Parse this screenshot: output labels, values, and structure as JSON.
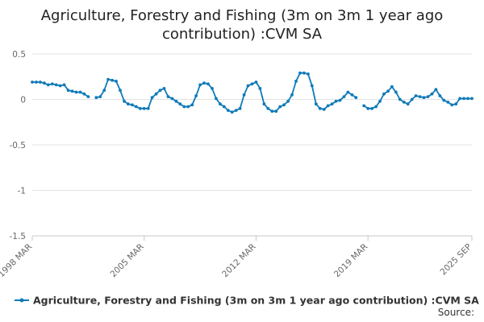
{
  "chart_data": {
    "type": "line",
    "title_lines": [
      "Agriculture, Forestry and Fishing (3m on 3m 1 year ago",
      "contribution) :CVM SA"
    ],
    "xlabel": "",
    "ylabel": "",
    "x_tick_labels": [
      "1998 MAR",
      "2005 MAR",
      "2012 MAR",
      "2019 MAR",
      "2025 SEP"
    ],
    "y_tick_labels": [
      "0.5",
      "0",
      "-0.5",
      "-1",
      "-1.5"
    ],
    "y_ticks": [
      0.5,
      0,
      -0.5,
      -1,
      -1.5
    ],
    "ylim": [
      -1.5,
      0.5
    ],
    "x_range": [
      "1998 MAR",
      "2025 SEP"
    ],
    "grid": true,
    "legend_position": "bottom",
    "series": [
      {
        "name": "Agriculture, Forestry and Fishing (3m on 3m 1 year ago contribution) :CVM SA",
        "color": "#0f7ab8",
        "points": [
          [
            "1998 MAR",
            0.19
          ],
          [
            "1998 JUN",
            0.19
          ],
          [
            "1998 SEP",
            0.19
          ],
          [
            "1998 DEC",
            0.18
          ],
          [
            "1999 MAR",
            0.16
          ],
          [
            "1999 JUN",
            0.17
          ],
          [
            "1999 SEP",
            0.16
          ],
          [
            "1999 DEC",
            0.15
          ],
          [
            "2000 MAR",
            0.16
          ],
          [
            "2000 JUN",
            0.1
          ],
          [
            "2000 SEP",
            0.09
          ],
          [
            "2000 DEC",
            0.08
          ],
          [
            "2001 MAR",
            0.08
          ],
          [
            "2001 JUN",
            0.06
          ],
          [
            "2001 SEP",
            0.03
          ],
          [
            "2002 MAR",
            0.02
          ],
          [
            "2002 JUN",
            0.03
          ],
          [
            "2002 SEP",
            0.1
          ],
          [
            "2002 DEC",
            0.22
          ],
          [
            "2003 MAR",
            0.21
          ],
          [
            "2003 JUN",
            0.2
          ],
          [
            "2003 SEP",
            0.1
          ],
          [
            "2003 DEC",
            -0.02
          ],
          [
            "2004 MAR",
            -0.05
          ],
          [
            "2004 JUN",
            -0.06
          ],
          [
            "2004 SEP",
            -0.08
          ],
          [
            "2004 DEC",
            -0.1
          ],
          [
            "2005 MAR",
            -0.1
          ],
          [
            "2005 JUN",
            -0.1
          ],
          [
            "2005 SEP",
            0.02
          ],
          [
            "2005 DEC",
            0.06
          ],
          [
            "2006 MAR",
            0.1
          ],
          [
            "2006 JUN",
            0.12
          ],
          [
            "2006 SEP",
            0.03
          ],
          [
            "2006 DEC",
            0.01
          ],
          [
            "2007 MAR",
            -0.02
          ],
          [
            "2007 JUN",
            -0.05
          ],
          [
            "2007 SEP",
            -0.08
          ],
          [
            "2007 DEC",
            -0.08
          ],
          [
            "2008 MAR",
            -0.06
          ],
          [
            "2008 JUN",
            0.04
          ],
          [
            "2008 SEP",
            0.16
          ],
          [
            "2008 DEC",
            0.18
          ],
          [
            "2009 MAR",
            0.17
          ],
          [
            "2009 JUN",
            0.12
          ],
          [
            "2009 SEP",
            0.01
          ],
          [
            "2009 DEC",
            -0.05
          ],
          [
            "2010 MAR",
            -0.08
          ],
          [
            "2010 JUN",
            -0.12
          ],
          [
            "2010 SEP",
            -0.14
          ],
          [
            "2010 DEC",
            -0.12
          ],
          [
            "2011 MAR",
            -0.1
          ],
          [
            "2011 JUN",
            0.05
          ],
          [
            "2011 SEP",
            0.15
          ],
          [
            "2011 DEC",
            0.17
          ],
          [
            "2012 MAR",
            0.19
          ],
          [
            "2012 JUN",
            0.12
          ],
          [
            "2012 SEP",
            -0.05
          ],
          [
            "2012 DEC",
            -0.1
          ],
          [
            "2013 MAR",
            -0.13
          ],
          [
            "2013 JUN",
            -0.13
          ],
          [
            "2013 SEP",
            -0.08
          ],
          [
            "2013 DEC",
            -0.06
          ],
          [
            "2014 MAR",
            -0.02
          ],
          [
            "2014 JUN",
            0.05
          ],
          [
            "2014 SEP",
            0.2
          ],
          [
            "2014 DEC",
            0.29
          ],
          [
            "2015 MAR",
            0.29
          ],
          [
            "2015 JUN",
            0.28
          ],
          [
            "2015 SEP",
            0.15
          ],
          [
            "2015 DEC",
            -0.05
          ],
          [
            "2016 MAR",
            -0.1
          ],
          [
            "2016 JUN",
            -0.11
          ],
          [
            "2016 SEP",
            -0.07
          ],
          [
            "2016 DEC",
            -0.05
          ],
          [
            "2017 MAR",
            -0.02
          ],
          [
            "2017 JUN",
            -0.01
          ],
          [
            "2017 SEP",
            0.03
          ],
          [
            "2017 DEC",
            0.08
          ],
          [
            "2018 MAR",
            0.05
          ],
          [
            "2018 JUN",
            0.02
          ],
          [
            "2018 DEC",
            -0.07
          ],
          [
            "2019 MAR",
            -0.1
          ],
          [
            "2019 JUN",
            -0.1
          ],
          [
            "2019 SEP",
            -0.08
          ],
          [
            "2019 DEC",
            -0.02
          ],
          [
            "2020 MAR",
            0.06
          ],
          [
            "2020 JUN",
            0.09
          ],
          [
            "2020 SEP",
            0.14
          ],
          [
            "2020 DEC",
            0.08
          ],
          [
            "2021 MAR",
            0.0
          ],
          [
            "2021 JUN",
            -0.03
          ],
          [
            "2021 SEP",
            -0.05
          ],
          [
            "2021 DEC",
            0.0
          ],
          [
            "2022 MAR",
            0.04
          ],
          [
            "2022 JUN",
            0.03
          ],
          [
            "2022 SEP",
            0.02
          ],
          [
            "2022 DEC",
            0.03
          ],
          [
            "2023 MAR",
            0.06
          ],
          [
            "2023 JUN",
            0.11
          ],
          [
            "2023 SEP",
            0.04
          ],
          [
            "2023 DEC",
            -0.01
          ],
          [
            "2024 MAR",
            -0.03
          ],
          [
            "2024 JUN",
            -0.06
          ],
          [
            "2024 SEP",
            -0.05
          ],
          [
            "2024 DEC",
            0.01
          ],
          [
            "2025 MAR",
            0.01
          ],
          [
            "2025 JUN",
            0.01
          ],
          [
            "2025 SEP",
            0.01
          ]
        ]
      }
    ],
    "source_label": "Source:"
  }
}
